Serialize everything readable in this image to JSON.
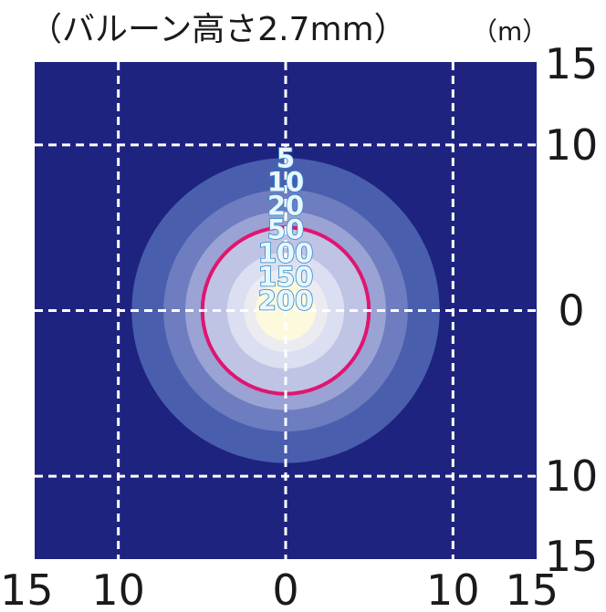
{
  "chart_data": {
    "type": "heatmap",
    "title": "（バルーン高さ2.7mm）",
    "unit": "（m）",
    "xlim": [
      -15,
      15
    ],
    "ylim": [
      -15,
      15
    ],
    "x_ticks": [
      {
        "value": -15,
        "label": "15"
      },
      {
        "value": -10,
        "label": "10"
      },
      {
        "value": 0,
        "label": "0"
      },
      {
        "value": 10,
        "label": "10"
      },
      {
        "value": 15,
        "label": "15"
      }
    ],
    "y_ticks": [
      {
        "value": 15,
        "label": "15"
      },
      {
        "value": 10,
        "label": "10"
      },
      {
        "value": 0,
        "label": "0"
      },
      {
        "value": -10,
        "label": "10"
      },
      {
        "value": -15,
        "label": "15"
      }
    ],
    "grid_lines": [
      -10,
      0,
      10
    ],
    "grid": true,
    "center": [
      0,
      0
    ],
    "levels": [
      {
        "label": "5",
        "radius": 9.2,
        "color": "#4a5eae"
      },
      {
        "label": "10",
        "radius": 7.3,
        "color": "#6e7dbf"
      },
      {
        "label": "20",
        "radius": 6.0,
        "color": "#9aa3d4"
      },
      {
        "label": "50",
        "radius": 5.0,
        "color": "#bfc4e5"
      },
      {
        "label": "100",
        "radius": 3.5,
        "color": "#dcdff1"
      },
      {
        "label": "150",
        "radius": 2.5,
        "color": "#ececf0"
      },
      {
        "label": "200",
        "radius": 1.8,
        "color": "#fdf9dc"
      }
    ],
    "highlight_contour": {
      "radius": 5.0,
      "color": "#e0156f"
    },
    "background_color": "#1e2380",
    "grid_color": "#ffffff"
  }
}
